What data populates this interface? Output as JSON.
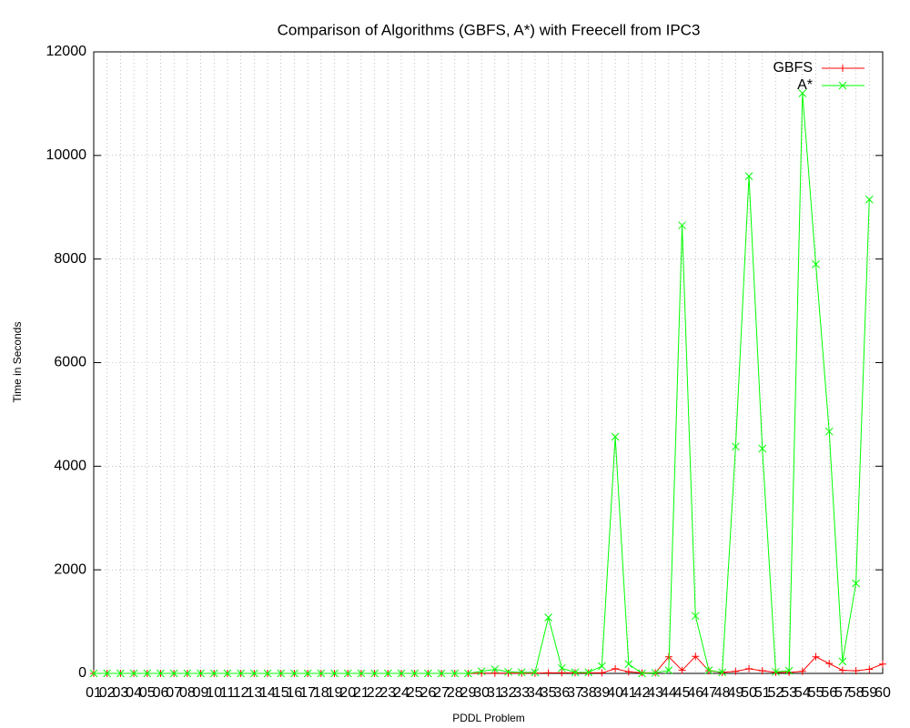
{
  "chart_data": {
    "type": "line",
    "title": "Comparison of Algorithms (GBFS, A*) with Freecell from IPC3",
    "x_label": "PDDL Problem",
    "y_label": "Time in Seconds",
    "categories": [
      "01",
      "02",
      "03",
      "04",
      "05",
      "06",
      "07",
      "08",
      "09",
      "10",
      "11",
      "12",
      "13",
      "14",
      "15",
      "16",
      "17",
      "18",
      "19",
      "20",
      "21",
      "22",
      "23",
      "24",
      "25",
      "26",
      "27",
      "28",
      "29",
      "30",
      "31",
      "32",
      "33",
      "34",
      "35",
      "36",
      "37",
      "38",
      "39",
      "40",
      "41",
      "42",
      "43",
      "44",
      "45",
      "46",
      "47",
      "48",
      "49",
      "50",
      "51",
      "52",
      "53",
      "54",
      "55",
      "56",
      "57",
      "58",
      "59",
      "60"
    ],
    "series": [
      {
        "name": "GBFS",
        "color": "#ff0000",
        "marker": "+",
        "values": [
          0,
          0,
          0,
          0,
          0,
          0,
          0,
          0,
          0,
          0,
          0,
          0,
          0,
          0,
          0,
          0,
          0,
          0,
          0,
          0,
          0,
          0,
          0,
          0,
          0,
          0,
          0,
          0,
          0,
          5,
          5,
          5,
          5,
          5,
          10,
          10,
          10,
          10,
          10,
          90,
          30,
          10,
          10,
          320,
          60,
          330,
          50,
          20,
          40,
          90,
          50,
          20,
          20,
          40,
          320,
          190,
          60,
          50,
          80,
          180
        ]
      },
      {
        "name": "A*",
        "color": "#00ff00",
        "marker": "x",
        "values": [
          0,
          0,
          0,
          0,
          0,
          0,
          0,
          0,
          0,
          0,
          0,
          0,
          0,
          0,
          0,
          0,
          0,
          0,
          0,
          0,
          0,
          0,
          0,
          0,
          0,
          0,
          0,
          0,
          0,
          40,
          80,
          30,
          20,
          20,
          1080,
          100,
          20,
          20,
          140,
          4570,
          180,
          0,
          10,
          60,
          8650,
          1110,
          60,
          20,
          4380,
          9600,
          4340,
          30,
          50,
          11200,
          7900,
          4670,
          230,
          1740,
          9150,
          null
        ]
      }
    ],
    "ylim": [
      0,
      12000
    ],
    "yticks": [
      0,
      2000,
      4000,
      6000,
      8000,
      10000,
      12000
    ],
    "grid": true,
    "legend": "top-right"
  }
}
